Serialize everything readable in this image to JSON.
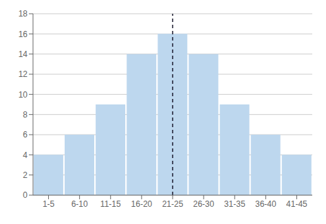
{
  "chart_data": {
    "type": "bar",
    "categories": [
      "1-5",
      "6-10",
      "11-15",
      "16-20",
      "21-25",
      "26-30",
      "31-35",
      "36-40",
      "41-45"
    ],
    "values": [
      4,
      6,
      9,
      14,
      16,
      14,
      9,
      6,
      4
    ],
    "color": "#bdd7ee",
    "ylim": [
      0,
      18
    ],
    "yticks": [
      0,
      2,
      4,
      6,
      8,
      10,
      12,
      14,
      16,
      18
    ],
    "grid": true,
    "vlines": [
      {
        "x": "21-25",
        "color": "#1a1a2e",
        "line_style": "dashed"
      }
    ]
  }
}
